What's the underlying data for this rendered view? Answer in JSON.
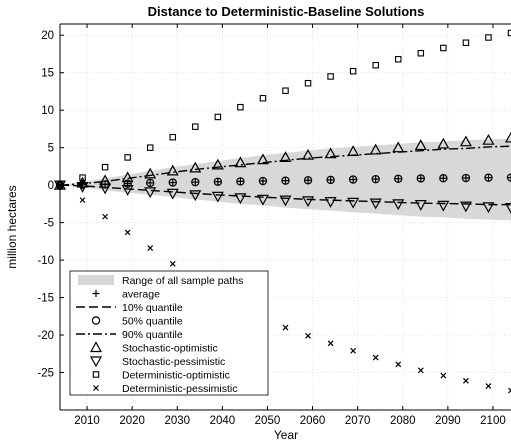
{
  "chart_data": {
    "type": "line",
    "title": "Distance to Deterministic-Baseline Solutions",
    "xlabel": "Year",
    "ylabel": "million hectares",
    "xlim": [
      2004,
      2104
    ],
    "ylim": [
      -30,
      21.5
    ],
    "xticks": [
      2010,
      2020,
      2030,
      2040,
      2050,
      2060,
      2070,
      2080,
      2090,
      2100
    ],
    "yticks": [
      -25,
      -20,
      -15,
      -10,
      -5,
      0,
      5,
      10,
      15,
      20
    ],
    "grid": true,
    "legend_position": "bottom-left",
    "x": [
      2004,
      2009,
      2014,
      2019,
      2024,
      2029,
      2034,
      2039,
      2044,
      2049,
      2054,
      2059,
      2064,
      2069,
      2074,
      2079,
      2084,
      2089,
      2094,
      2099,
      2104
    ],
    "band": {
      "name": "Range of all sample paths",
      "upper": [
        0,
        0.4,
        0.9,
        1.4,
        1.9,
        2.4,
        2.8,
        3.2,
        3.6,
        4.0,
        4.3,
        4.6,
        4.9,
        5.1,
        5.3,
        5.5,
        5.7,
        5.8,
        6.0,
        6.1,
        6.2
      ],
      "lower": [
        0,
        -0.3,
        -0.7,
        -1.0,
        -1.3,
        -1.6,
        -1.9,
        -2.2,
        -2.5,
        -2.7,
        -3.0,
        -3.2,
        -3.4,
        -3.6,
        -3.8,
        -4.0,
        -4.2,
        -4.3,
        -4.5,
        -4.6,
        -4.7
      ]
    },
    "series": [
      {
        "name": "average",
        "marker": "plus",
        "values": [
          0,
          0.05,
          0.1,
          0.2,
          0.3,
          0.35,
          0.4,
          0.45,
          0.5,
          0.55,
          0.6,
          0.65,
          0.7,
          0.75,
          0.8,
          0.85,
          0.9,
          0.92,
          0.95,
          1.0,
          1.0
        ]
      },
      {
        "name": "10% quantile",
        "line": "dash",
        "values": [
          0,
          -0.1,
          -0.3,
          -0.5,
          -0.7,
          -0.9,
          -1.1,
          -1.3,
          -1.45,
          -1.6,
          -1.75,
          -1.9,
          -2.0,
          -2.1,
          -2.2,
          -2.3,
          -2.4,
          -2.45,
          -2.5,
          -2.6,
          -2.6
        ]
      },
      {
        "name": "50% quantile",
        "marker": "circle",
        "values": [
          0,
          0.05,
          0.1,
          0.2,
          0.3,
          0.35,
          0.4,
          0.45,
          0.5,
          0.55,
          0.6,
          0.65,
          0.7,
          0.75,
          0.8,
          0.85,
          0.9,
          0.92,
          0.95,
          1.0,
          1.0
        ]
      },
      {
        "name": "90% quantile",
        "line": "dashdot",
        "values": [
          0,
          0.2,
          0.5,
          0.9,
          1.3,
          1.7,
          2.1,
          2.4,
          2.7,
          3.0,
          3.3,
          3.6,
          3.8,
          4.0,
          4.2,
          4.4,
          4.6,
          4.8,
          4.9,
          5.1,
          5.2
        ]
      },
      {
        "name": "Stochastic-optimistic",
        "marker": "triangle-up",
        "values": [
          0,
          0.3,
          0.6,
          1.0,
          1.5,
          1.9,
          2.3,
          2.7,
          3.0,
          3.4,
          3.7,
          4.0,
          4.2,
          4.5,
          4.7,
          5.0,
          5.3,
          5.5,
          5.8,
          6.0,
          6.3
        ]
      },
      {
        "name": "Stochastic-pessimistic",
        "marker": "triangle-down",
        "values": [
          0,
          -0.2,
          -0.4,
          -0.6,
          -0.9,
          -1.1,
          -1.3,
          -1.5,
          -1.7,
          -1.9,
          -2.0,
          -2.1,
          -2.2,
          -2.3,
          -2.4,
          -2.5,
          -2.6,
          -2.7,
          -2.8,
          -2.9,
          -3.0
        ]
      },
      {
        "name": "Deterministic-optimistic",
        "marker": "square",
        "values": [
          0,
          1.0,
          2.4,
          3.7,
          5.0,
          6.4,
          7.8,
          9.1,
          10.4,
          11.6,
          12.6,
          13.6,
          14.5,
          15.2,
          16.0,
          16.8,
          17.6,
          18.3,
          19.0,
          19.7,
          20.3
        ]
      },
      {
        "name": "Deterministic-pessimistic",
        "marker": "x",
        "values": [
          0,
          -2.0,
          -4.2,
          -6.3,
          -8.4,
          -10.5,
          -12.5,
          -14.3,
          -15.9,
          -17.6,
          -19.0,
          -20.1,
          -21.1,
          -22.1,
          -23.0,
          -23.9,
          -24.7,
          -25.4,
          -26.1,
          -26.8,
          -27.4
        ]
      }
    ]
  },
  "legend": {
    "labels": [
      "Range of all sample paths",
      "average",
      "10% quantile",
      "50% quantile",
      "90% quantile",
      "Stochastic-optimistic",
      "Stochastic-pessimistic",
      "Deterministic-optimistic",
      "Deterministic-pessimistic"
    ]
  },
  "colors": {
    "band": "#d8d8d8",
    "ink": "#000000",
    "grid": "#e3e3e3"
  }
}
